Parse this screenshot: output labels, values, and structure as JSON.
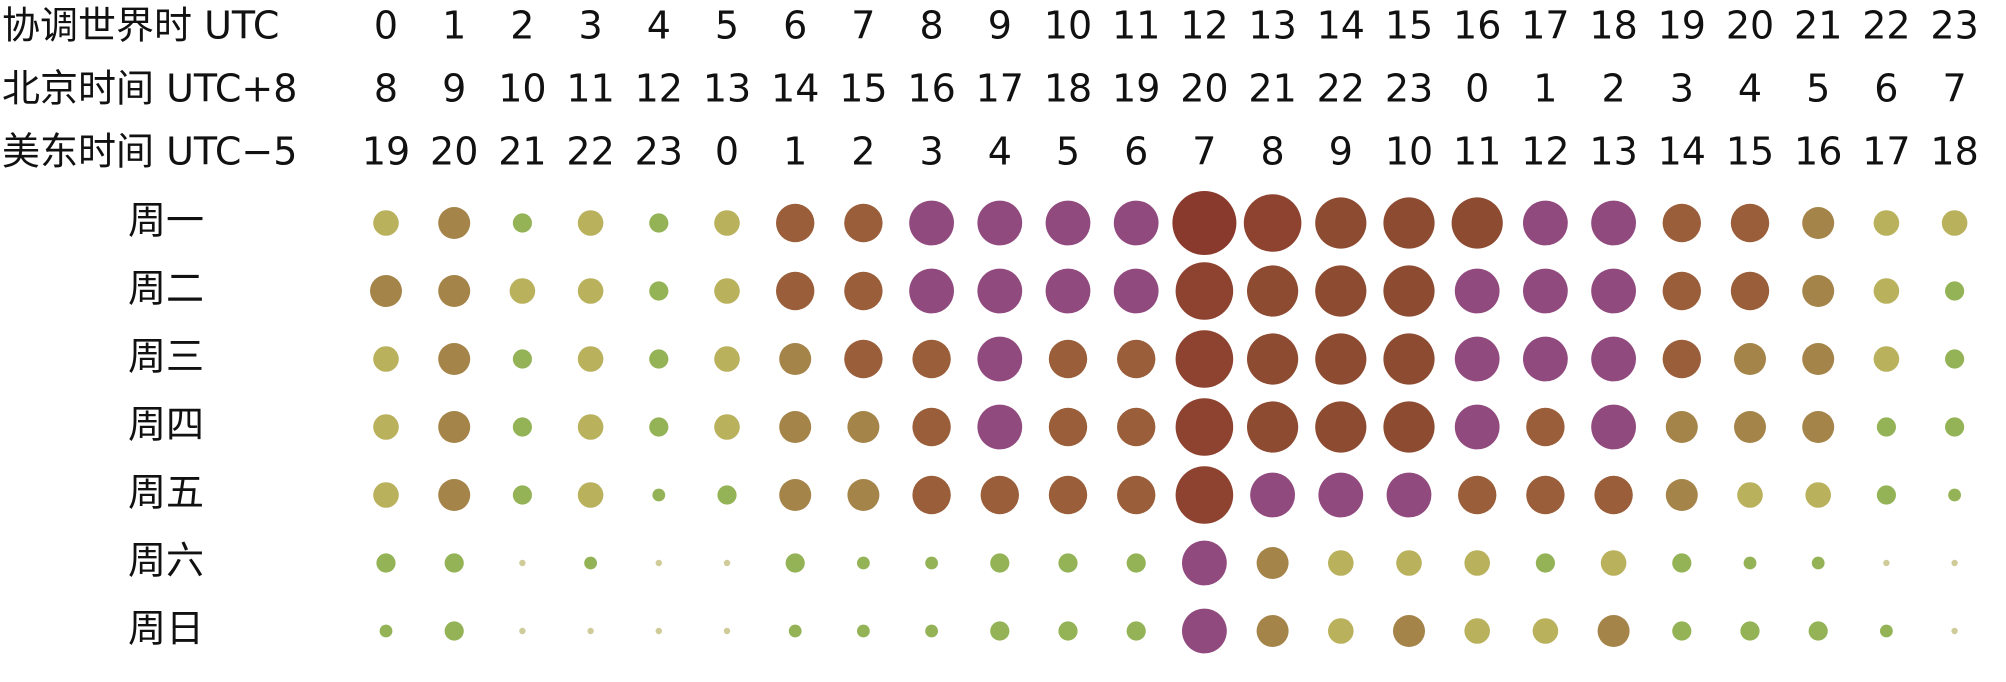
{
  "chart_data": {
    "type": "punchcard",
    "header_rows": [
      {
        "label": "协调世界时 UTC",
        "hours": [
          0,
          1,
          2,
          3,
          4,
          5,
          6,
          7,
          8,
          9,
          10,
          11,
          12,
          13,
          14,
          15,
          16,
          17,
          18,
          19,
          20,
          21,
          22,
          23
        ]
      },
      {
        "label": "北京时间 UTC+8",
        "hours": [
          8,
          9,
          10,
          11,
          12,
          13,
          14,
          15,
          16,
          17,
          18,
          19,
          20,
          21,
          22,
          23,
          0,
          1,
          2,
          3,
          4,
          5,
          6,
          7
        ]
      },
      {
        "label": "美东时间 UTC−5",
        "hours": [
          19,
          20,
          21,
          22,
          23,
          0,
          1,
          2,
          3,
          4,
          5,
          6,
          7,
          8,
          9,
          10,
          11,
          12,
          13,
          14,
          15,
          16,
          17,
          18
        ]
      }
    ],
    "categories": [
      "周一",
      "周二",
      "周三",
      "周四",
      "周五",
      "周六",
      "周日"
    ],
    "values": [
      [
        4,
        5,
        3,
        4,
        3,
        4,
        6,
        6,
        7,
        7,
        7,
        7,
        10,
        9,
        8,
        8,
        8,
        7,
        7,
        6,
        6,
        5,
        4,
        4
      ],
      [
        5,
        5,
        4,
        4,
        3,
        4,
        6,
        6,
        7,
        7,
        7,
        7,
        9,
        8,
        8,
        8,
        7,
        7,
        7,
        6,
        6,
        5,
        4,
        3
      ],
      [
        4,
        5,
        3,
        4,
        3,
        4,
        5,
        6,
        6,
        7,
        6,
        6,
        9,
        8,
        8,
        8,
        7,
        7,
        7,
        6,
        5,
        5,
        4,
        3
      ],
      [
        4,
        5,
        3,
        4,
        3,
        4,
        5,
        5,
        6,
        7,
        6,
        6,
        9,
        8,
        8,
        8,
        7,
        6,
        7,
        5,
        5,
        5,
        3,
        3
      ],
      [
        4,
        5,
        3,
        4,
        2,
        3,
        5,
        5,
        6,
        6,
        6,
        6,
        9,
        7,
        7,
        7,
        6,
        6,
        6,
        5,
        4,
        4,
        3,
        2
      ],
      [
        3,
        3,
        1,
        2,
        1,
        1,
        3,
        2,
        2,
        3,
        3,
        3,
        7,
        5,
        4,
        4,
        4,
        3,
        4,
        3,
        2,
        2,
        1,
        1
      ],
      [
        2,
        3,
        1,
        1,
        1,
        1,
        2,
        2,
        2,
        3,
        3,
        3,
        7,
        5,
        4,
        5,
        4,
        4,
        5,
        3,
        3,
        3,
        2,
        1
      ]
    ],
    "colors": [
      "#cfcc9a",
      "#93b356",
      "#93b356",
      "#b9b15c",
      "#a5844a",
      "#9a5f3a",
      "#914a7e",
      "#8d4b31",
      "#8e4230",
      "#8a3a2c"
    ]
  }
}
